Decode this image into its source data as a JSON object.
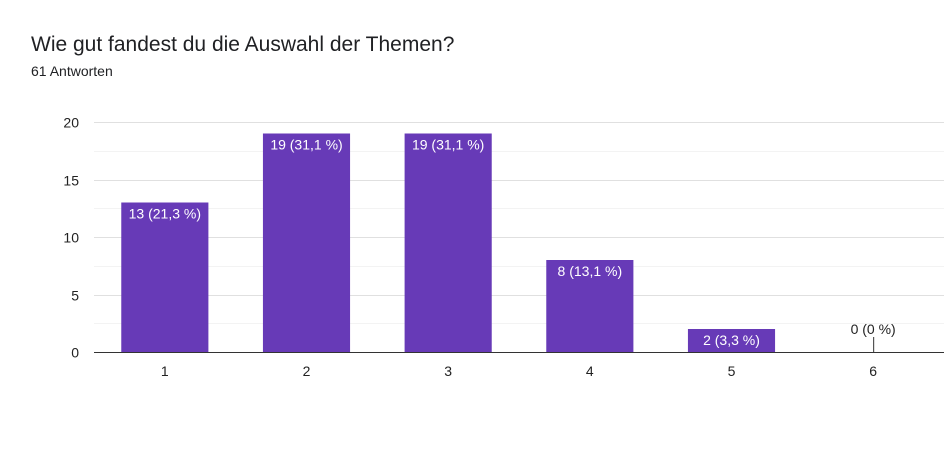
{
  "title": "Wie gut fandest du die Auswahl der Themen?",
  "subtitle": "61 Antworten",
  "colors": {
    "bar": "#673ab7",
    "grid_major": "#e0e0e0",
    "grid_minor": "#f3f3f3",
    "axis": "#333333",
    "label_inside": "#ffffff",
    "label_outside": "#222222"
  },
  "chart_data": {
    "type": "bar",
    "title": "Wie gut fandest du die Auswahl der Themen?",
    "subtitle": "61 Antworten",
    "categories": [
      "1",
      "2",
      "3",
      "4",
      "5",
      "6"
    ],
    "values": [
      13,
      19,
      19,
      8,
      2,
      0
    ],
    "data_labels": [
      "13 (21,3 %)",
      "19 (31,1 %)",
      "19 (31,1 %)",
      "8 (13,1 %)",
      "2 (3,3 %)",
      "0 (0 %)"
    ],
    "ylim": [
      0,
      20
    ],
    "yticks": [
      0,
      5,
      10,
      15,
      20
    ],
    "xlabel": "",
    "ylabel": "",
    "grid": true,
    "legend": "none"
  }
}
